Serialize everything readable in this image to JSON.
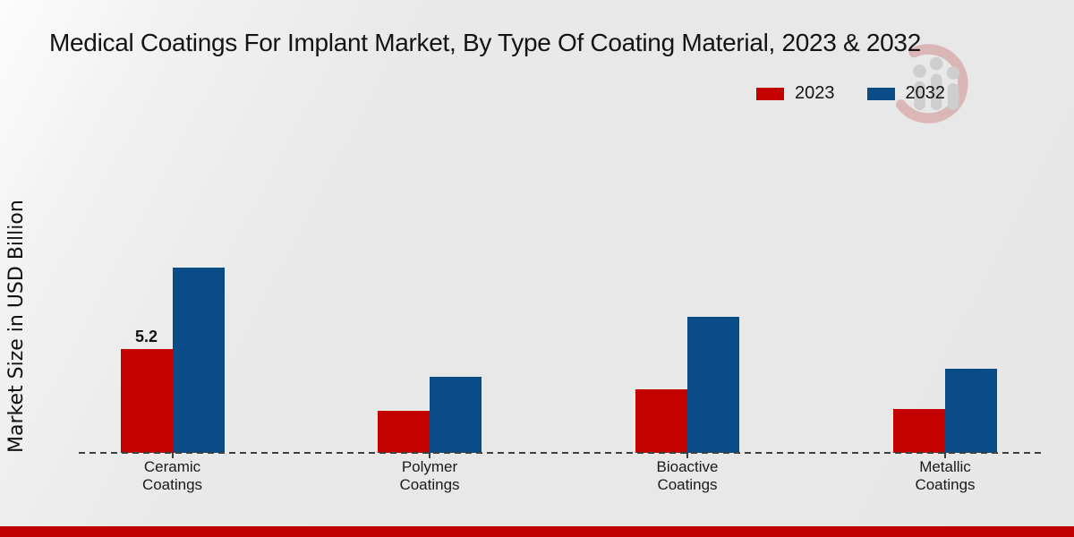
{
  "page": {
    "title": "Medical Coatings For Implant Market, By Type Of Coating Material, 2023 & 2032",
    "footer_color": "#c00101"
  },
  "chart_data": {
    "type": "bar",
    "title": "Medical Coatings For Implant Market, By Type Of Coating Material, 2023 & 2032",
    "ylabel": "Market Size in USD Billion",
    "xlabel": "",
    "categories": [
      "Ceramic Coatings",
      "Polymer Coatings",
      "Bioactive Coatings",
      "Metallic Coatings"
    ],
    "series": [
      {
        "name": "2023",
        "color": "#c40101",
        "values": [
          5.2,
          2.1,
          3.2,
          2.2
        ],
        "data_labels": [
          "5.2",
          "",
          "",
          ""
        ]
      },
      {
        "name": "2032",
        "color": "#0a4c88",
        "values": [
          9.3,
          3.8,
          6.8,
          4.2
        ],
        "data_labels": [
          "",
          "",
          "",
          ""
        ]
      }
    ],
    "legend_position": "top-right",
    "grid": false,
    "baseline_style": "dashed",
    "ylim": [
      0,
      10
    ],
    "axis_color": "#3f3f3f"
  },
  "watermark": {
    "icon": "mrfr-logo",
    "ring_color": "#c05050",
    "bar_color": "#9a9a9a"
  }
}
